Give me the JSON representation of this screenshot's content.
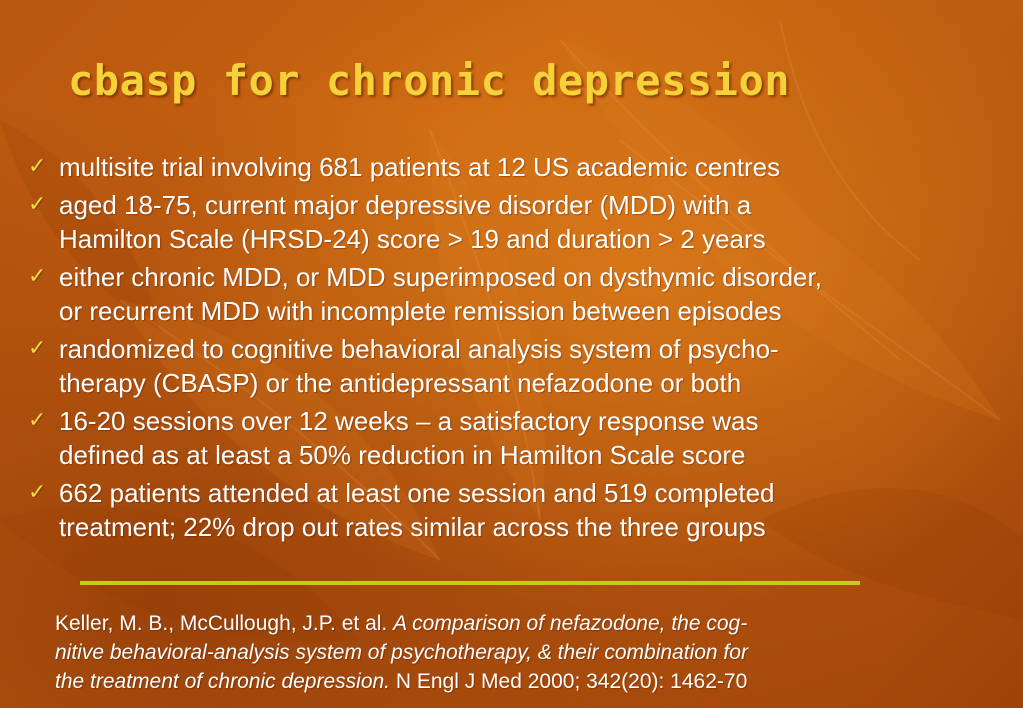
{
  "slide": {
    "title": "cbasp for chronic depression",
    "check_icon": "check-icon",
    "bullets": [
      {
        "line1": "multisite trial involving 681 patients at 12 US academic centres",
        "line2": ""
      },
      {
        "line1": "aged 18-75, current major depressive disorder (MDD) with a",
        "line2": "Hamilton Scale (HRSD-24) score > 19 and duration > 2 years"
      },
      {
        "line1": "either chronic MDD, or MDD superimposed on dysthymic disorder,",
        "line2": "or recurrent MDD with incomplete remission between episodes"
      },
      {
        "line1": "randomized to cognitive behavioral analysis system of psycho-",
        "line2": "therapy (CBASP) or the antidepressant nefazodone or both"
      },
      {
        "line1": "16-20 sessions over 12 weeks – a satisfactory response was",
        "line2": "defined as at least a 50% reduction in Hamilton Scale score"
      },
      {
        "line1": "662 patients attended at least one session and 519 completed",
        "line2": "treatment; 22% drop out rates similar across the three groups"
      }
    ],
    "citation": {
      "authors": "Keller, M. B., McCullough, J.P. et al.",
      "article_line1": "A comparison of nefazodone, the cog-",
      "article_line2": "nitive behavioral-analysis system of psychotherapy, & their combination for",
      "article_line3": "the treatment of chronic depression.",
      "journal": "N Engl J Med 2000; 342(20): 1462-70"
    },
    "colors": {
      "title": "#f5d23a",
      "check": "#f0dc3a",
      "divider": "#c9c81c",
      "text": "#ffffff"
    }
  }
}
